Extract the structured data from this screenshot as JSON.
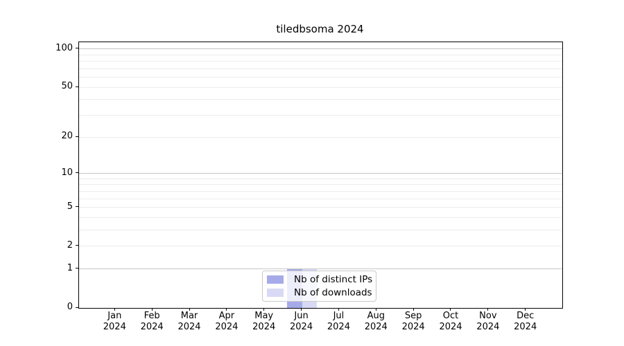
{
  "chart_data": {
    "type": "bar",
    "title": "tiledbsoma 2024",
    "categories": [
      "Jan",
      "Feb",
      "Mar",
      "Apr",
      "May",
      "Jun",
      "Jul",
      "Aug",
      "Sep",
      "Oct",
      "Nov",
      "Dec"
    ],
    "category_year": "2024",
    "series": [
      {
        "name": "Nb of distinct IPs",
        "color": "#a5abe9",
        "values": [
          0,
          0,
          0,
          0,
          0,
          1,
          0,
          0,
          0,
          0,
          0,
          0
        ]
      },
      {
        "name": "Nb of downloads",
        "color": "#d8daf5",
        "values": [
          0,
          0,
          0,
          0,
          0,
          1,
          0,
          0,
          0,
          0,
          0,
          0
        ]
      }
    ],
    "yscale": "log1p",
    "ylim": [
      0,
      113
    ],
    "y_tick_labels": [
      0,
      1,
      2,
      5,
      10,
      20,
      50,
      100
    ],
    "grid_major": [
      1,
      10,
      100
    ],
    "grid_minor": [
      2,
      3,
      4,
      5,
      6,
      7,
      8,
      9,
      20,
      30,
      40,
      50,
      60,
      70,
      80,
      90
    ],
    "grid_major_color": "#c6c6c6",
    "grid_minor_color": "#ececec",
    "legend_position": "lower center",
    "xlabel": "",
    "ylabel": ""
  }
}
